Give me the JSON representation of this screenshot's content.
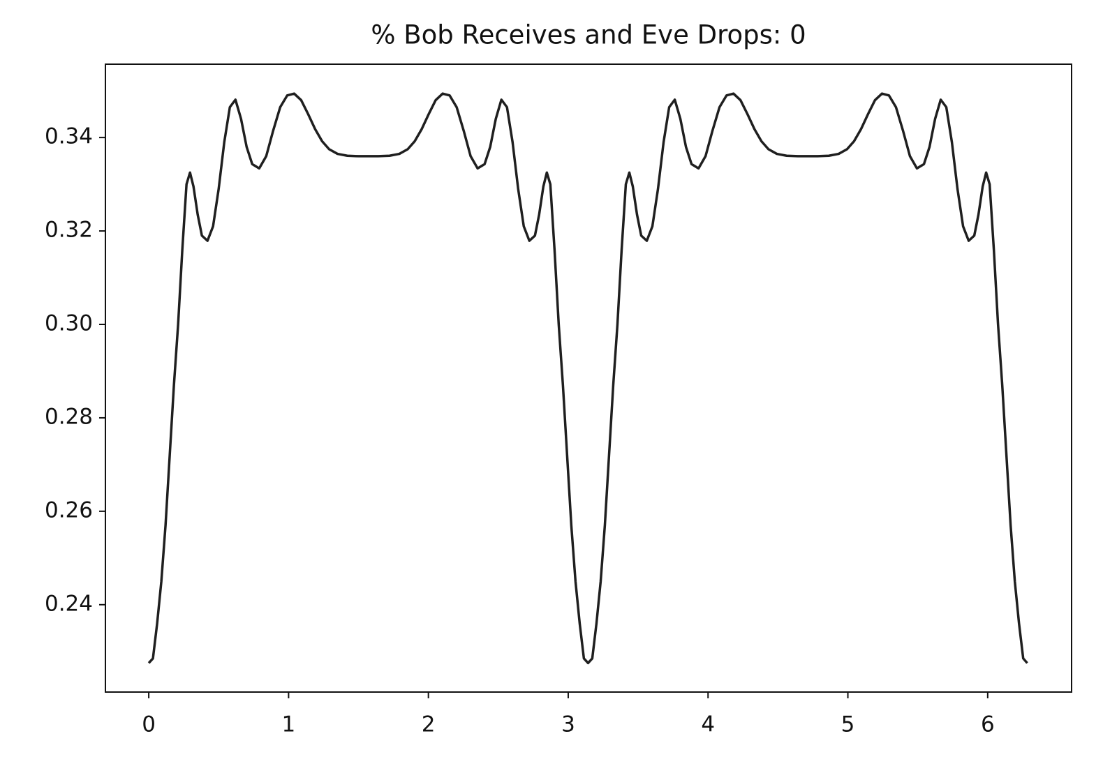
{
  "chart_data": {
    "type": "line",
    "title": "% Bob Receives and Eve Drops: 0",
    "color": "#1f1f1f",
    "x": [
      0,
      0.03,
      0.06,
      0.09,
      0.12,
      0.15,
      0.18,
      0.21,
      0.24,
      0.27,
      0.295,
      0.32,
      0.35,
      0.38,
      0.42,
      0.46,
      0.5,
      0.54,
      0.58,
      0.62,
      0.66,
      0.7,
      0.74,
      0.79,
      0.84,
      0.89,
      0.94,
      0.99,
      1.04,
      1.09,
      1.14,
      1.19,
      1.24,
      1.29,
      1.35,
      1.42,
      1.5,
      1.571,
      1.642,
      1.722,
      1.792,
      1.852,
      1.902,
      1.952,
      2.002,
      2.052,
      2.102,
      2.152,
      2.202,
      2.252,
      2.302,
      2.352,
      2.402,
      2.442,
      2.482,
      2.522,
      2.562,
      2.602,
      2.642,
      2.682,
      2.722,
      2.762,
      2.792,
      2.822,
      2.847,
      2.872,
      2.902,
      2.932,
      2.962,
      2.992,
      3.022,
      3.052,
      3.082,
      3.112,
      3.142,
      3.172,
      3.202,
      3.232,
      3.262,
      3.292,
      3.322,
      3.352,
      3.382,
      3.412,
      3.437,
      3.462,
      3.492,
      3.522,
      3.562,
      3.602,
      3.642,
      3.682,
      3.722,
      3.762,
      3.802,
      3.842,
      3.882,
      3.932,
      3.982,
      4.032,
      4.082,
      4.132,
      4.182,
      4.232,
      4.282,
      4.332,
      4.382,
      4.432,
      4.492,
      4.562,
      4.642,
      4.713,
      4.784,
      4.864,
      4.934,
      4.994,
      5.044,
      5.094,
      5.144,
      5.194,
      5.244,
      5.294,
      5.344,
      5.394,
      5.444,
      5.494,
      5.544,
      5.584,
      5.624,
      5.664,
      5.704,
      5.744,
      5.784,
      5.824,
      5.864,
      5.904,
      5.934,
      5.964,
      5.989,
      6.014,
      6.044,
      6.074,
      6.104,
      6.134,
      6.164,
      6.194,
      6.224,
      6.254,
      6.283
    ],
    "values": [
      0.2275,
      0.2285,
      0.236,
      0.245,
      0.257,
      0.272,
      0.287,
      0.3,
      0.316,
      0.33,
      0.3325,
      0.3295,
      0.3235,
      0.319,
      0.3179,
      0.321,
      0.329,
      0.339,
      0.3465,
      0.3481,
      0.344,
      0.338,
      0.3343,
      0.3334,
      0.336,
      0.3415,
      0.3465,
      0.349,
      0.3494,
      0.348,
      0.345,
      0.3418,
      0.3392,
      0.3375,
      0.3365,
      0.3361,
      0.336,
      0.336,
      0.336,
      0.3361,
      0.3365,
      0.3375,
      0.3392,
      0.3418,
      0.345,
      0.348,
      0.3494,
      0.349,
      0.3465,
      0.3415,
      0.336,
      0.3334,
      0.3343,
      0.338,
      0.344,
      0.3481,
      0.3465,
      0.339,
      0.329,
      0.321,
      0.3179,
      0.319,
      0.3235,
      0.3295,
      0.3325,
      0.33,
      0.316,
      0.3,
      0.287,
      0.272,
      0.257,
      0.245,
      0.236,
      0.2285,
      0.2275,
      0.2285,
      0.236,
      0.245,
      0.257,
      0.272,
      0.287,
      0.3,
      0.316,
      0.33,
      0.3325,
      0.3295,
      0.3235,
      0.319,
      0.3179,
      0.321,
      0.329,
      0.339,
      0.3465,
      0.3481,
      0.344,
      0.338,
      0.3343,
      0.3334,
      0.336,
      0.3415,
      0.3465,
      0.349,
      0.3494,
      0.348,
      0.345,
      0.3418,
      0.3392,
      0.3375,
      0.3365,
      0.3361,
      0.336,
      0.336,
      0.336,
      0.3361,
      0.3365,
      0.3375,
      0.3392,
      0.3418,
      0.345,
      0.348,
      0.3494,
      0.349,
      0.3465,
      0.3415,
      0.336,
      0.3334,
      0.3343,
      0.338,
      0.344,
      0.3481,
      0.3465,
      0.339,
      0.329,
      0.321,
      0.3179,
      0.319,
      0.3235,
      0.3295,
      0.3325,
      0.33,
      0.316,
      0.3,
      0.287,
      0.272,
      0.257,
      0.245,
      0.236,
      0.2285,
      0.2275
    ],
    "xlim": [
      -0.31,
      6.6
    ],
    "xticks": [
      0,
      1,
      2,
      3,
      4,
      5,
      6
    ],
    "ylim": [
      0.2213,
      0.3557
    ],
    "yticks": [
      0.24,
      0.26,
      0.28,
      {
        "value": 0.3,
        "label": "0.30"
      },
      0.32,
      0.34
    ],
    "grid": false
  }
}
